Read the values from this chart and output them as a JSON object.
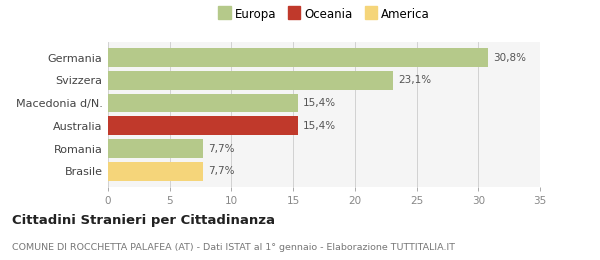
{
  "categories": [
    "Brasile",
    "Romania",
    "Australia",
    "Macedonia d/N.",
    "Svizzera",
    "Germania"
  ],
  "values": [
    7.7,
    7.7,
    15.4,
    15.4,
    23.1,
    30.8
  ],
  "labels": [
    "7,7%",
    "7,7%",
    "15,4%",
    "15,4%",
    "23,1%",
    "30,8%"
  ],
  "bar_colors": [
    "#f5d57a",
    "#b5c98a",
    "#c0392b",
    "#b5c98a",
    "#b5c98a",
    "#b5c98a"
  ],
  "legend": [
    {
      "label": "Europa",
      "color": "#b5c98a"
    },
    {
      "label": "Oceania",
      "color": "#c0392b"
    },
    {
      "label": "America",
      "color": "#f5d57a"
    }
  ],
  "xlim": [
    0,
    35
  ],
  "xticks": [
    0,
    5,
    10,
    15,
    20,
    25,
    30,
    35
  ],
  "title_bold": "Cittadini Stranieri per Cittadinanza",
  "subtitle": "COMUNE DI ROCCHETTA PALAFEA (AT) - Dati ISTAT al 1° gennaio - Elaborazione TUTTITALIA.IT",
  "background_color": "#ffffff",
  "plot_bg_color": "#f5f5f5"
}
